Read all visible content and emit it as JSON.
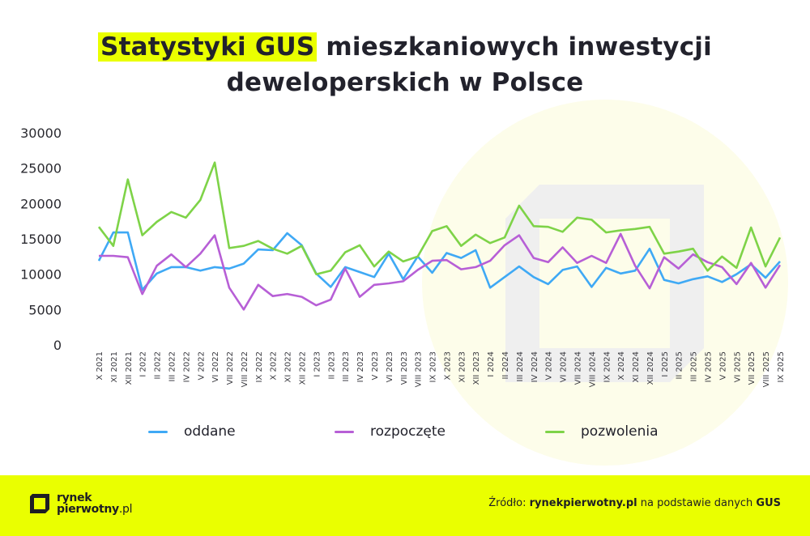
{
  "title": {
    "highlight": "Statystyki GUS",
    "rest_line1": " mieszkaniowych inwestycji",
    "line2": "deweloperskich w Polsce"
  },
  "colors": {
    "accent": "#eaff00",
    "oddane": "#3fa9f5",
    "rozpoczete": "#b75fd6",
    "pozwolenia": "#7ed348",
    "text": "#22222c",
    "watermark_circle": "#fdfdea",
    "watermark_logo": "#efefef"
  },
  "legend": [
    {
      "label": "oddane",
      "color": "#3fa9f5"
    },
    {
      "label": "rozpoczęte",
      "color": "#b75fd6"
    },
    {
      "label": "pozwolenia",
      "color": "#7ed348"
    }
  ],
  "footer": {
    "logo_line1": "rynek",
    "logo_line2": "pierwotny",
    "logo_tld": ".pl",
    "source_prefix": "Źródło: ",
    "source_site": "rynekpierwotny.pl",
    "source_middle": " na podstawie danych ",
    "source_org": "GUS"
  },
  "chart_data": {
    "type": "line",
    "title": "Statystyki GUS mieszkaniowych inwestycji deweloperskich w Polsce",
    "xlabel": "",
    "ylabel": "",
    "ylim": [
      0,
      30000
    ],
    "yticks": [
      0,
      5000,
      10000,
      15000,
      20000,
      25000,
      30000
    ],
    "grid": false,
    "legend_position": "bottom",
    "categories": [
      "X 2021",
      "XI 2021",
      "XII 2021",
      "I 2022",
      "II 2022",
      "III 2022",
      "IV 2022",
      "V 2022",
      "VI 2022",
      "VII 2022",
      "VIII 2022",
      "IX 2022",
      "X 2022",
      "XI 2022",
      "XII 2022",
      "I 2023",
      "II 2023",
      "III 2023",
      "IV 2023",
      "V 2023",
      "VI 2023",
      "VII 2023",
      "VIII 2023",
      "IX 2023",
      "X 2023",
      "XI 2023",
      "XII 2023",
      "I 2024",
      "II 2024",
      "III 2024",
      "IV 2024",
      "V 2024",
      "VI 2024",
      "VII 2024",
      "VIII 2024",
      "IX 2024",
      "X 2024",
      "XI 2024",
      "XII 2024",
      "I 2025",
      "II 2025",
      "III 2025",
      "IV 2025",
      "V 2025",
      "VI 2025",
      "VII 2025",
      "VIII 2025",
      "IX 2025"
    ],
    "series": [
      {
        "name": "oddane",
        "color": "#3fa9f5",
        "values": [
          11900,
          15900,
          15900,
          7800,
          10100,
          11000,
          11000,
          10500,
          11000,
          10800,
          11500,
          13500,
          13400,
          15800,
          14100,
          10100,
          8200,
          11000,
          10300,
          9600,
          12900,
          9300,
          12500,
          10200,
          13000,
          12300,
          13400,
          8100,
          9600,
          11100,
          9600,
          8600,
          10600,
          11100,
          8200,
          10900,
          10100,
          10500,
          13600,
          9200,
          8700,
          9300,
          9700,
          8900,
          10000,
          11400,
          9500,
          11800
        ]
      },
      {
        "name": "rozpoczęte",
        "color": "#b75fd6",
        "values": [
          12600,
          12600,
          12400,
          7200,
          11200,
          12800,
          11000,
          12900,
          15500,
          8100,
          5000,
          8500,
          6900,
          7200,
          6800,
          5600,
          6400,
          10800,
          6800,
          8500,
          8700,
          9000,
          10600,
          11900,
          12000,
          10700,
          11000,
          11900,
          14100,
          15500,
          12300,
          11700,
          13800,
          11600,
          12600,
          11600,
          15700,
          11200,
          8000,
          12400,
          10800,
          12800,
          11700,
          11000,
          8600,
          11600,
          8100,
          11300
        ]
      },
      {
        "name": "pozwolenia",
        "color": "#7ed348",
        "values": [
          16700,
          14000,
          23400,
          15500,
          17400,
          18800,
          18000,
          20500,
          25800,
          13700,
          14000,
          14700,
          13600,
          12900,
          14000,
          10000,
          10500,
          13100,
          14100,
          11100,
          13200,
          11800,
          12500,
          16100,
          16800,
          14000,
          15600,
          14400,
          15200,
          19700,
          16800,
          16700,
          16000,
          18000,
          17700,
          15900,
          16200,
          16400,
          16700,
          12900,
          13200,
          13600,
          10500,
          12500,
          10900,
          16600,
          11100,
          15200
        ]
      }
    ]
  }
}
